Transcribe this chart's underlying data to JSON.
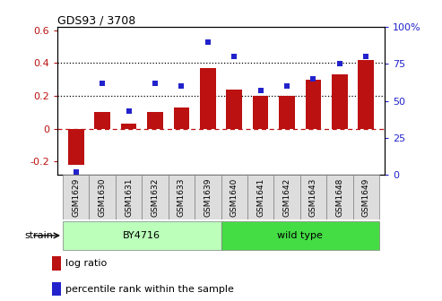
{
  "title": "GDS93 / 3708",
  "samples": [
    "GSM1629",
    "GSM1630",
    "GSM1631",
    "GSM1632",
    "GSM1633",
    "GSM1639",
    "GSM1640",
    "GSM1641",
    "GSM1642",
    "GSM1643",
    "GSM1648",
    "GSM1649"
  ],
  "log_ratio": [
    -0.22,
    0.1,
    0.03,
    0.1,
    0.13,
    0.37,
    0.24,
    0.2,
    0.2,
    0.3,
    0.33,
    0.42
  ],
  "percentile_rank": [
    2,
    62,
    43,
    62,
    60,
    90,
    80,
    57,
    60,
    65,
    75,
    80
  ],
  "bar_color": "#bb1111",
  "dot_color": "#2222cc",
  "ylim_left": [
    -0.28,
    0.62
  ],
  "ylim_right": [
    0,
    100
  ],
  "yticks_left": [
    -0.2,
    0.0,
    0.2,
    0.4,
    0.6
  ],
  "yticks_right": [
    0,
    25,
    50,
    75,
    100
  ],
  "ytick_labels_right": [
    "0",
    "25",
    "50",
    "75",
    "100%"
  ],
  "hlines": [
    0.2,
    0.4
  ],
  "zero_line": 0.0,
  "group1_label": "BY4716",
  "group2_label": "wild type",
  "group1_count": 6,
  "group2_count": 6,
  "strain_label": "strain",
  "legend_bar_label": "log ratio",
  "legend_dot_label": "percentile rank within the sample",
  "group1_color": "#bbffbb",
  "group2_color": "#44dd44",
  "tick_box_color": "#dddddd",
  "background_color": "#ffffff",
  "plot_bg_color": "#ffffff"
}
